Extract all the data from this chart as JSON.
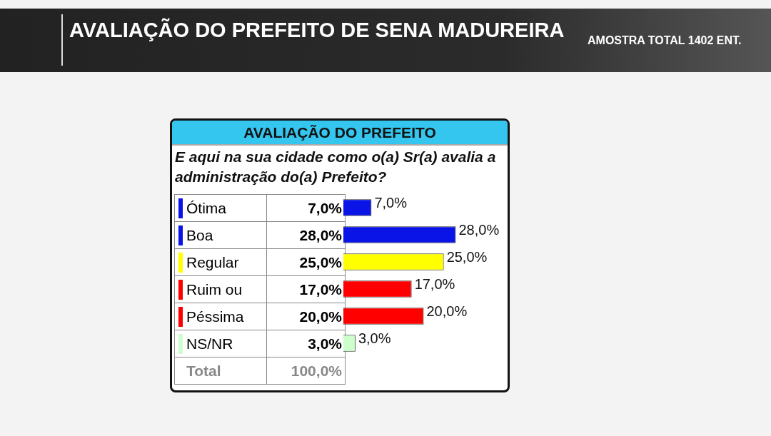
{
  "chart_data": {
    "type": "bar",
    "orientation": "horizontal",
    "title": "AVALIAÇÃO DO PREFEITO DE SENA MADUREIRA",
    "subtitle": "AMOSTRA TOTAL 1402 ENT.",
    "annotations": [
      "AVALIAÇÃO DO PREFEITO",
      "E aqui na sua cidade como o(a) Sr(a) avalia a administração do(a) Prefeito?",
      "Total",
      "100,0%"
    ],
    "categories": [
      "Ótima",
      "Boa",
      "Regular",
      "Ruim ou",
      "Péssima",
      "NS/NR"
    ],
    "values": [
      7,
      28,
      25,
      17,
      20,
      3
    ],
    "value_labels": [
      "7,0%",
      "28,0%",
      "25,0%",
      "17,0%",
      "20,0%",
      "3,0%"
    ],
    "colors": [
      "#0a14e6",
      "#0a14e6",
      "#ffff00",
      "#ff0000",
      "#ff0000",
      "#ccffcc"
    ]
  }
}
